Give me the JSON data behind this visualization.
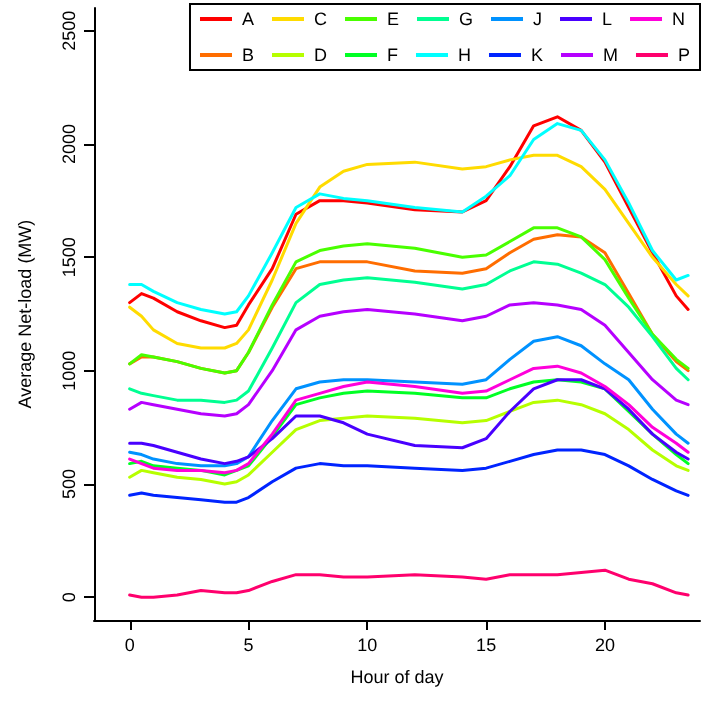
{
  "chart_data": {
    "type": "line",
    "xlabel": "Hour of day",
    "ylabel": "Average Net-load (MW)",
    "x": [
      0,
      0.5,
      1,
      2,
      3,
      4,
      4.5,
      5,
      6,
      7,
      8,
      9,
      10,
      12,
      14,
      15,
      16,
      17,
      18,
      19,
      20,
      21,
      22,
      23,
      23.5
    ],
    "xlim": [
      -1.5,
      24
    ],
    "xticks": [
      0,
      5,
      10,
      15,
      20
    ],
    "ylim": [
      -100,
      2600
    ],
    "yticks": [
      0,
      500,
      1000,
      1500,
      2000,
      2500
    ],
    "legend": "top right",
    "marker": "none",
    "line_style": "solid",
    "grid": false,
    "series": [
      {
        "name": "A",
        "color": "#ff0000",
        "values": [
          1300,
          1340,
          1320,
          1260,
          1220,
          1190,
          1200,
          1290,
          1450,
          1690,
          1750,
          1750,
          1740,
          1710,
          1700,
          1750,
          1900,
          2080,
          2120,
          2060,
          1920,
          1720,
          1520,
          1330,
          1270
        ]
      },
      {
        "name": "B",
        "color": "#ff6d00",
        "values": [
          1030,
          1060,
          1060,
          1040,
          1010,
          990,
          1000,
          1080,
          1280,
          1450,
          1480,
          1480,
          1480,
          1440,
          1430,
          1450,
          1520,
          1580,
          1600,
          1590,
          1520,
          1340,
          1160,
          1040,
          1000
        ]
      },
      {
        "name": "C",
        "color": "#ffdb00",
        "values": [
          1280,
          1240,
          1180,
          1120,
          1100,
          1100,
          1120,
          1180,
          1400,
          1650,
          1810,
          1880,
          1910,
          1920,
          1890,
          1900,
          1930,
          1950,
          1950,
          1900,
          1800,
          1650,
          1500,
          1380,
          1330
        ]
      },
      {
        "name": "D",
        "color": "#b6ff00",
        "values": [
          530,
          560,
          550,
          530,
          520,
          500,
          510,
          540,
          640,
          740,
          780,
          790,
          800,
          790,
          770,
          780,
          820,
          860,
          870,
          850,
          810,
          740,
          650,
          580,
          560
        ]
      },
      {
        "name": "E",
        "color": "#49ff00",
        "values": [
          1030,
          1070,
          1060,
          1040,
          1010,
          990,
          1000,
          1080,
          1290,
          1480,
          1530,
          1550,
          1560,
          1540,
          1500,
          1510,
          1570,
          1630,
          1630,
          1590,
          1490,
          1320,
          1160,
          1050,
          1010
        ]
      },
      {
        "name": "F",
        "color": "#00ff24",
        "values": [
          590,
          600,
          580,
          570,
          560,
          540,
          560,
          580,
          710,
          850,
          880,
          900,
          910,
          900,
          880,
          880,
          920,
          950,
          960,
          950,
          920,
          820,
          720,
          630,
          590
        ]
      },
      {
        "name": "G",
        "color": "#00ff92",
        "values": [
          920,
          900,
          890,
          870,
          870,
          860,
          870,
          910,
          1100,
          1300,
          1380,
          1400,
          1410,
          1390,
          1360,
          1380,
          1440,
          1480,
          1470,
          1430,
          1380,
          1280,
          1150,
          1010,
          960
        ]
      },
      {
        "name": "H",
        "color": "#00ffff",
        "values": [
          1380,
          1380,
          1350,
          1300,
          1270,
          1250,
          1260,
          1330,
          1520,
          1720,
          1780,
          1760,
          1750,
          1720,
          1700,
          1770,
          1860,
          2020,
          2090,
          2060,
          1930,
          1740,
          1530,
          1400,
          1420
        ]
      },
      {
        "name": "J",
        "color": "#0092ff",
        "values": [
          640,
          630,
          610,
          590,
          580,
          580,
          590,
          620,
          780,
          920,
          950,
          960,
          960,
          950,
          940,
          960,
          1050,
          1130,
          1150,
          1110,
          1030,
          960,
          830,
          720,
          680
        ]
      },
      {
        "name": "K",
        "color": "#0024ff",
        "values": [
          450,
          460,
          450,
          440,
          430,
          420,
          420,
          440,
          510,
          570,
          590,
          580,
          580,
          570,
          560,
          570,
          600,
          630,
          650,
          650,
          630,
          580,
          520,
          470,
          450
        ]
      },
      {
        "name": "L",
        "color": "#4900ff",
        "values": [
          680,
          680,
          670,
          640,
          610,
          590,
          600,
          620,
          700,
          800,
          800,
          770,
          720,
          670,
          660,
          700,
          820,
          920,
          960,
          960,
          920,
          830,
          720,
          640,
          610
        ]
      },
      {
        "name": "M",
        "color": "#b600ff",
        "values": [
          830,
          860,
          850,
          830,
          810,
          800,
          810,
          850,
          1000,
          1180,
          1240,
          1260,
          1270,
          1250,
          1220,
          1240,
          1290,
          1300,
          1290,
          1270,
          1200,
          1080,
          960,
          870,
          850
        ]
      },
      {
        "name": "N",
        "color": "#ff00db",
        "values": [
          610,
          590,
          570,
          560,
          560,
          550,
          560,
          590,
          720,
          870,
          900,
          930,
          950,
          930,
          900,
          910,
          960,
          1010,
          1020,
          990,
          930,
          850,
          750,
          680,
          640
        ]
      },
      {
        "name": "P",
        "color": "#ff006d",
        "values": [
          10,
          0,
          0,
          10,
          30,
          20,
          20,
          30,
          70,
          100,
          100,
          90,
          90,
          100,
          90,
          80,
          100,
          100,
          100,
          110,
          120,
          80,
          60,
          20,
          10
        ]
      }
    ]
  }
}
